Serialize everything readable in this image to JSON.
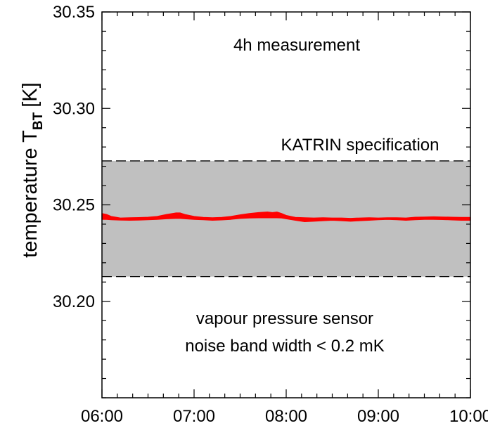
{
  "chart_data": {
    "type": "area",
    "ylabel": "temperature T",
    "ylabel_subscript": "BT",
    "ylabel_unit": "[K]",
    "x_tick_labels": [
      "06:00",
      "07:00",
      "08:00",
      "09:00",
      "10:00"
    ],
    "x_ticks_hours": [
      6,
      7,
      8,
      9,
      10
    ],
    "xlim_hours": [
      6.0,
      10.0
    ],
    "ylim": [
      30.15,
      30.35
    ],
    "y_tick_values": [
      30.2,
      30.25,
      30.3,
      30.35
    ],
    "y_tick_labels": [
      "30.20",
      "30.25",
      "30.30",
      "30.35"
    ],
    "grid": false,
    "annotations": {
      "top": "4h measurement",
      "spec": "KATRIN specification",
      "bottom_line1": "vapour pressure sensor",
      "bottom_line2": "noise band width < 0.2 mK"
    },
    "specification_band": {
      "lower": 30.2128,
      "upper": 30.2728
    },
    "colors": {
      "band": "#c0c0c0",
      "series": "#ff0000",
      "dash": "#000000"
    },
    "series": [
      {
        "x_hours": [
          6.0,
          6.05,
          6.1,
          6.2,
          6.3,
          6.4,
          6.5,
          6.6,
          6.7,
          6.8,
          6.85,
          6.9,
          7.0,
          7.1,
          7.2,
          7.3,
          7.4,
          7.5,
          7.6,
          7.7,
          7.8,
          7.85,
          7.9,
          7.95,
          8.0,
          8.1,
          8.2,
          8.3,
          8.4,
          8.5,
          8.6,
          8.7,
          8.8,
          8.9,
          9.0,
          9.1,
          9.2,
          9.3,
          9.4,
          9.5,
          9.6,
          9.7,
          9.8,
          9.9,
          10.0
        ],
        "upper": [
          30.2455,
          30.245,
          30.244,
          30.2432,
          30.2433,
          30.2434,
          30.2436,
          30.244,
          30.245,
          30.2458,
          30.2458,
          30.245,
          30.244,
          30.2435,
          30.2433,
          30.2435,
          30.244,
          30.2448,
          30.2455,
          30.246,
          30.2463,
          30.246,
          30.2463,
          30.2455,
          30.2445,
          30.2435,
          30.2433,
          30.2432,
          30.2433,
          30.2432,
          30.2432,
          30.243,
          30.2432,
          30.2433,
          30.2432,
          30.2433,
          30.2433,
          30.2432,
          30.2436,
          30.2437,
          30.2438,
          30.2437,
          30.2436,
          30.2435,
          30.2435
        ],
        "lower": [
          30.2425,
          30.2425,
          30.2423,
          30.2421,
          30.242,
          30.2421,
          30.2423,
          30.2425,
          30.2428,
          30.243,
          30.243,
          30.2428,
          30.2425,
          30.2423,
          30.242,
          30.2422,
          30.2425,
          30.243,
          30.2432,
          30.2433,
          30.2433,
          30.2433,
          30.2433,
          30.2432,
          30.2428,
          30.242,
          30.2413,
          30.2415,
          30.2418,
          30.242,
          30.2418,
          30.2415,
          30.2418,
          30.242,
          30.2423,
          30.2425,
          30.2423,
          30.242,
          30.2423,
          30.2425,
          30.2425,
          30.2424,
          30.2422,
          30.242,
          30.242
        ]
      }
    ]
  }
}
